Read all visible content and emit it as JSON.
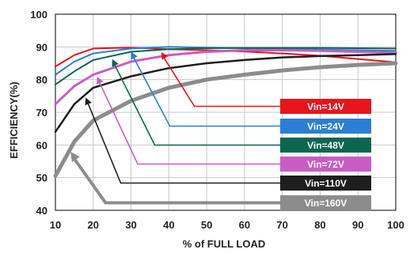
{
  "chart_data": {
    "type": "line",
    "title": "",
    "xlabel": "% of FULL LOAD",
    "ylabel": "EFFICIENCY(%)",
    "xlim": [
      10,
      100
    ],
    "ylim": [
      40,
      100
    ],
    "xticks": [
      "10",
      "20",
      "30",
      "40",
      "50",
      "60",
      "70",
      "80",
      "90",
      "100"
    ],
    "yticks": [
      "40",
      "50",
      "60",
      "70",
      "80",
      "90",
      "100"
    ],
    "grid": true,
    "legend_placement": "bottom-right",
    "series": [
      {
        "name": "Vin=14V",
        "color": "#e8141c",
        "x": [
          10,
          15,
          20,
          30,
          40,
          50,
          60,
          70,
          80,
          90,
          100
        ],
        "y": [
          84,
          87.5,
          89.5,
          89.8,
          89.3,
          89,
          88.6,
          88,
          87.3,
          86.3,
          85.3
        ]
      },
      {
        "name": "Vin=24V",
        "color": "#2a7fd4",
        "x": [
          10,
          15,
          20,
          30,
          40,
          50,
          60,
          70,
          80,
          90,
          100
        ],
        "y": [
          81.5,
          85.5,
          88,
          89.5,
          90,
          89.8,
          89.6,
          89.4,
          89.2,
          89,
          88.8
        ]
      },
      {
        "name": "Vin=48V",
        "color": "#0a6650",
        "x": [
          10,
          15,
          20,
          30,
          40,
          50,
          60,
          70,
          80,
          90,
          100
        ],
        "y": [
          78.5,
          82.5,
          86,
          88.5,
          89.3,
          89.6,
          89.7,
          89.7,
          89.7,
          89.6,
          89.5
        ]
      },
      {
        "name": "Vin=72V",
        "color": "#c85cc6",
        "x": [
          10,
          15,
          20,
          30,
          40,
          50,
          60,
          70,
          80,
          90,
          100
        ],
        "y": [
          72.5,
          78,
          81.5,
          85.5,
          87.5,
          88.5,
          89,
          89,
          88.8,
          88.5,
          88.2
        ]
      },
      {
        "name": "Vin=110V",
        "color": "#1e1e1e",
        "x": [
          10,
          15,
          20,
          30,
          40,
          50,
          60,
          70,
          80,
          90,
          100
        ],
        "y": [
          64,
          72.5,
          77.5,
          81,
          83.5,
          85,
          86,
          86.8,
          87.2,
          87.5,
          87.8
        ]
      },
      {
        "name": "Vin=160V",
        "color": "#8c8c8c",
        "x": [
          10,
          15,
          20,
          30,
          40,
          50,
          60,
          70,
          80,
          90,
          100
        ],
        "y": [
          50.5,
          61,
          67.5,
          73.5,
          77.5,
          80,
          81.5,
          82.8,
          83.8,
          84.5,
          85
        ]
      }
    ]
  }
}
